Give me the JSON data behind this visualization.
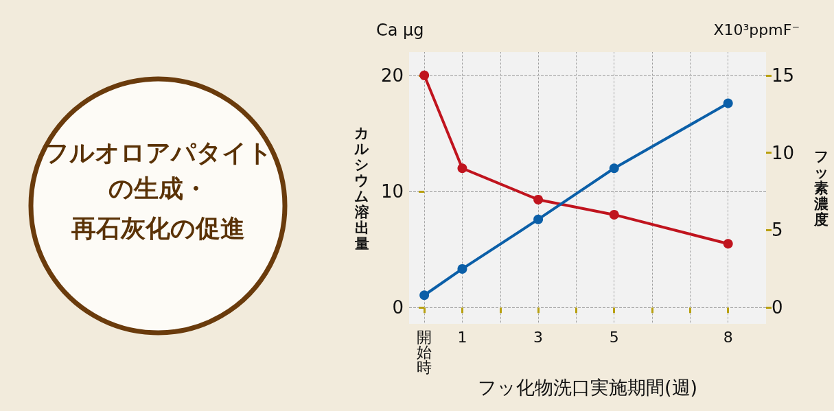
{
  "chart_data": {
    "type": "line",
    "title": "フルオロアパタイトの生成・",
    "subtitle": "再石灰化の促進",
    "xlabel": "フッ化物洗口実施期間(週)",
    "ylabel": "カルシウム溶出量",
    "y2label": "フッ素濃度",
    "annotations": [
      "Ca μg",
      "X10³ppmF⁻"
    ],
    "x": [
      0,
      1,
      3,
      5,
      8
    ],
    "xlim": [
      -0.4,
      9
    ],
    "xticks": [
      {
        "value": 0,
        "label": "開始時"
      },
      1,
      {
        "value": 2,
        "label": null
      },
      3,
      {
        "value": 4,
        "label": null
      },
      5,
      {
        "value": 6,
        "label": null
      },
      {
        "value": 7,
        "label": null
      },
      8
    ],
    "ylim": [
      -1.4,
      22
    ],
    "yticks": [
      0,
      10,
      20
    ],
    "y2lim": [
      -1.05,
      16.5
    ],
    "y2ticks": [
      0,
      5,
      10,
      15
    ],
    "series": [
      {
        "color": "#c0141e",
        "values": [
          20,
          12,
          9.3,
          8,
          5.5
        ]
      },
      {
        "color": "#0b5fa8",
        "axis": "y2",
        "values": [
          0.8,
          2.5,
          5.7,
          9,
          13.2
        ]
      }
    ],
    "marker": "circle",
    "line_style": "solid",
    "grid": true
  }
}
